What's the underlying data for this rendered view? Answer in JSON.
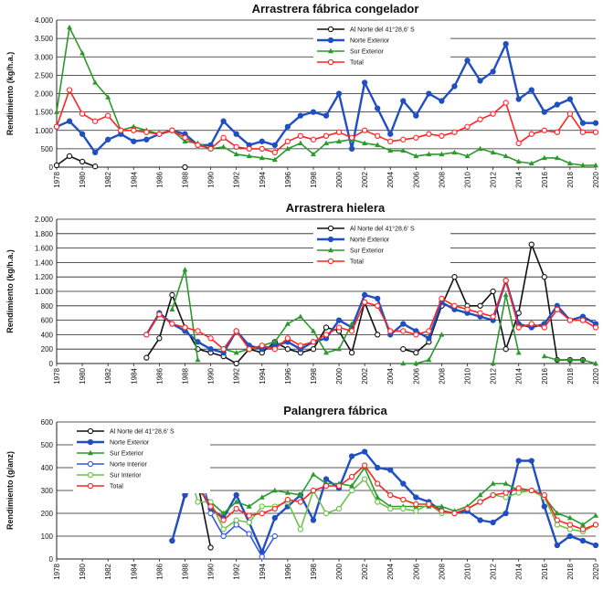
{
  "chart_data": [
    {
      "type": "line",
      "title": "Arrastrera fábrica congelador",
      "y_label": "Rendimiento (kg/h.a.)",
      "x": [
        1978,
        1979,
        1980,
        1981,
        1982,
        1983,
        1984,
        1985,
        1986,
        1987,
        1988,
        1989,
        1990,
        1991,
        1992,
        1993,
        1994,
        1995,
        1996,
        1997,
        1998,
        1999,
        2000,
        2001,
        2002,
        2003,
        2004,
        2005,
        2006,
        2007,
        2008,
        2009,
        2010,
        2011,
        2012,
        2013,
        2014,
        2015,
        2016,
        2017,
        2018,
        2019,
        2020
      ],
      "xlim": [
        1978,
        2020
      ],
      "xticks": [
        1978,
        1980,
        1982,
        1984,
        1986,
        1988,
        1990,
        1992,
        1994,
        1996,
        1998,
        2000,
        2002,
        2004,
        2006,
        2008,
        2010,
        2012,
        2014,
        2016,
        2018,
        2020
      ],
      "ylim": [
        0,
        4000
      ],
      "yticks": [
        0,
        500,
        {
          "value": 1000,
          "label": "1.000"
        },
        {
          "value": 1500,
          "label": "1.500"
        },
        {
          "value": 2000,
          "label": "2.000"
        },
        {
          "value": 2500,
          "label": "2.500"
        },
        {
          "value": 3000,
          "label": "3.000"
        },
        {
          "value": 3500,
          "label": "3.500"
        },
        {
          "value": 4000,
          "label": "4.000"
        }
      ],
      "grid": true,
      "legend": "upper center",
      "series": [
        {
          "name": "Al Norte del 41°28,6' S",
          "color": "#111111",
          "marker": "open-circle",
          "values": [
            50,
            300,
            150,
            20,
            null,
            null,
            null,
            null,
            null,
            null,
            0,
            null,
            null,
            null,
            null,
            null,
            null,
            null,
            null,
            null,
            null,
            null,
            null,
            null,
            null,
            null,
            null,
            null,
            null,
            null,
            null,
            null,
            null,
            null,
            null,
            null,
            null,
            null,
            null,
            null,
            null,
            null,
            null
          ]
        },
        {
          "name": "Norte Exterior",
          "color": "#1f4fc0",
          "marker": "circle",
          "values": [
            1100,
            1250,
            900,
            400,
            750,
            900,
            700,
            750,
            900,
            1000,
            900,
            600,
            600,
            1250,
            900,
            600,
            700,
            600,
            1100,
            1400,
            1500,
            1400,
            2000,
            500,
            2300,
            1600,
            900,
            1800,
            1400,
            2000,
            1800,
            2200,
            2900,
            2350,
            2600,
            3350,
            1850,
            2100,
            1500,
            1700,
            1850,
            1200,
            1200
          ]
        },
        {
          "name": "Sur Exterior",
          "color": "#2a9a2a",
          "marker": "triangle",
          "values": [
            1500,
            3800,
            3100,
            2300,
            1900,
            1000,
            1100,
            1000,
            900,
            1000,
            700,
            650,
            500,
            550,
            350,
            300,
            250,
            200,
            500,
            650,
            350,
            650,
            700,
            750,
            650,
            600,
            450,
            450,
            300,
            350,
            350,
            400,
            300,
            500,
            400,
            300,
            150,
            100,
            250,
            250,
            100,
            50,
            50
          ]
        },
        {
          "name": "Total",
          "color": "#ff2424",
          "marker": "open-circle",
          "values": [
            1100,
            2100,
            1450,
            1250,
            1400,
            1000,
            1000,
            950,
            900,
            1000,
            800,
            600,
            500,
            800,
            550,
            500,
            500,
            400,
            700,
            850,
            750,
            850,
            950,
            800,
            1000,
            850,
            700,
            750,
            800,
            900,
            850,
            950,
            1100,
            1300,
            1450,
            1750,
            650,
            900,
            1000,
            950,
            1450,
            950,
            950
          ]
        }
      ]
    },
    {
      "type": "line",
      "title": "Arrastrera hielera",
      "y_label": "Rendimiento (kg/h.a.)",
      "x": [
        1978,
        1979,
        1980,
        1981,
        1982,
        1983,
        1984,
        1985,
        1986,
        1987,
        1988,
        1989,
        1990,
        1991,
        1992,
        1993,
        1994,
        1995,
        1996,
        1997,
        1998,
        1999,
        2000,
        2001,
        2002,
        2003,
        2004,
        2005,
        2006,
        2007,
        2008,
        2009,
        2010,
        2011,
        2012,
        2013,
        2014,
        2015,
        2016,
        2017,
        2018,
        2019,
        2020
      ],
      "xlim": [
        1978,
        2020
      ],
      "xticks": [
        1978,
        1980,
        1982,
        1984,
        1986,
        1988,
        1990,
        1992,
        1994,
        1996,
        1998,
        2000,
        2002,
        2004,
        2006,
        2008,
        2010,
        2012,
        2014,
        2016,
        2018,
        2020
      ],
      "ylim": [
        0,
        2000
      ],
      "yticks": [
        0,
        200,
        400,
        600,
        800,
        {
          "value": 1000,
          "label": "1.000"
        },
        {
          "value": 1200,
          "label": "1.200"
        },
        {
          "value": 1400,
          "label": "1.400"
        },
        {
          "value": 1600,
          "label": "1.600"
        },
        {
          "value": 1800,
          "label": "1.800"
        },
        {
          "value": 2000,
          "label": "2.000"
        }
      ],
      "grid": true,
      "legend": "upper center",
      "series": [
        {
          "name": "Al Norte del 41°28,6' S",
          "color": "#111111",
          "marker": "open-circle",
          "values": [
            null,
            null,
            null,
            null,
            null,
            null,
            null,
            80,
            350,
            950,
            500,
            200,
            150,
            100,
            0,
            200,
            150,
            300,
            200,
            150,
            200,
            500,
            450,
            150,
            850,
            400,
            null,
            200,
            150,
            300,
            800,
            1200,
            800,
            800,
            1000,
            200,
            700,
            1650,
            1200,
            50,
            50,
            50,
            null
          ]
        },
        {
          "name": "Norte Exterior",
          "color": "#1f4fc0",
          "marker": "circle",
          "values": [
            null,
            null,
            null,
            null,
            null,
            null,
            null,
            400,
            700,
            550,
            450,
            300,
            200,
            150,
            450,
            250,
            200,
            250,
            300,
            200,
            300,
            350,
            600,
            500,
            950,
            900,
            400,
            550,
            450,
            350,
            850,
            750,
            700,
            650,
            600,
            1150,
            550,
            500,
            550,
            800,
            600,
            650,
            550
          ]
        },
        {
          "name": "Sur Exterior",
          "color": "#2a9a2a",
          "marker": "triangle",
          "values": [
            null,
            null,
            null,
            null,
            null,
            null,
            null,
            null,
            null,
            750,
            1300,
            50,
            null,
            200,
            150,
            200,
            250,
            300,
            550,
            650,
            450,
            150,
            200,
            550,
            null,
            null,
            null,
            0,
            0,
            50,
            400,
            null,
            null,
            null,
            0,
            950,
            150,
            null,
            100,
            50,
            50,
            50,
            0
          ]
        },
        {
          "name": "Total",
          "color": "#ff2424",
          "marker": "open-circle",
          "values": [
            null,
            null,
            null,
            null,
            null,
            null,
            null,
            400,
            680,
            550,
            500,
            450,
            350,
            200,
            450,
            200,
            250,
            200,
            350,
            250,
            300,
            400,
            500,
            450,
            850,
            800,
            450,
            450,
            400,
            450,
            900,
            800,
            750,
            700,
            650,
            1150,
            500,
            550,
            500,
            750,
            600,
            600,
            500
          ]
        }
      ]
    },
    {
      "type": "line",
      "title": "Palangrera fábrica",
      "y_label": "Rendimiento (g/anz)",
      "x": [
        1978,
        1979,
        1980,
        1981,
        1982,
        1983,
        1984,
        1985,
        1986,
        1987,
        1988,
        1989,
        1990,
        1991,
        1992,
        1993,
        1994,
        1995,
        1996,
        1997,
        1998,
        1999,
        2000,
        2001,
        2002,
        2003,
        2004,
        2005,
        2006,
        2007,
        2008,
        2009,
        2010,
        2011,
        2012,
        2013,
        2014,
        2015,
        2016,
        2017,
        2018,
        2019,
        2020
      ],
      "xlim": [
        1978,
        2020
      ],
      "xticks": [
        1978,
        1980,
        1982,
        1984,
        1986,
        1988,
        1990,
        1992,
        1994,
        1996,
        1998,
        2000,
        2002,
        2004,
        2006,
        2008,
        2010,
        2012,
        2014,
        2016,
        2018,
        2020
      ],
      "ylim": [
        0,
        600
      ],
      "yticks": [
        0,
        100,
        200,
        300,
        400,
        500,
        600
      ],
      "grid": true,
      "legend": "upper left",
      "series": [
        {
          "name": "Al Norte del 41°28,6' S",
          "color": "#111111",
          "marker": "open-circle",
          "values": [
            null,
            null,
            null,
            null,
            null,
            null,
            null,
            null,
            null,
            80,
            290,
            330,
            50,
            null,
            null,
            null,
            null,
            null,
            null,
            null,
            null,
            null,
            null,
            null,
            null,
            null,
            null,
            null,
            null,
            null,
            null,
            null,
            null,
            null,
            null,
            null,
            null,
            null,
            null,
            null,
            null,
            null,
            null
          ]
        },
        {
          "name": "Norte Exterior",
          "color": "#1f4fc0",
          "marker": "circle",
          "values": [
            null,
            null,
            null,
            null,
            null,
            null,
            null,
            null,
            null,
            80,
            280,
            330,
            220,
            180,
            280,
            160,
            30,
            180,
            230,
            280,
            170,
            350,
            310,
            450,
            470,
            400,
            390,
            330,
            270,
            250,
            210,
            200,
            210,
            170,
            160,
            200,
            430,
            430,
            230,
            60,
            100,
            80,
            60
          ]
        },
        {
          "name": "Sur Exterior",
          "color": "#2a9a2a",
          "marker": "triangle",
          "values": [
            null,
            null,
            null,
            null,
            null,
            null,
            null,
            null,
            null,
            420,
            370,
            300,
            250,
            200,
            250,
            230,
            270,
            300,
            290,
            280,
            370,
            330,
            330,
            320,
            400,
            270,
            230,
            230,
            230,
            230,
            230,
            210,
            230,
            280,
            330,
            330,
            300,
            300,
            270,
            200,
            180,
            150,
            190
          ]
        },
        {
          "name": "Norte Interior",
          "color": "#3358e0",
          "marker": "open-circle",
          "values": [
            null,
            null,
            null,
            null,
            null,
            null,
            null,
            null,
            null,
            550,
            520,
            430,
            200,
            100,
            150,
            110,
            10,
            100,
            null,
            null,
            null,
            null,
            null,
            null,
            null,
            null,
            null,
            null,
            null,
            null,
            null,
            null,
            null,
            null,
            null,
            null,
            null,
            null,
            null,
            null,
            null,
            null,
            null
          ]
        },
        {
          "name": "Sur Interior",
          "color": "#6cc24a",
          "marker": "open-circle",
          "values": [
            null,
            null,
            null,
            null,
            null,
            null,
            null,
            null,
            null,
            400,
            450,
            250,
            250,
            130,
            170,
            160,
            230,
            230,
            250,
            130,
            300,
            200,
            220,
            300,
            350,
            250,
            220,
            220,
            210,
            240,
            200,
            200,
            220,
            250,
            280,
            270,
            290,
            300,
            270,
            150,
            130,
            120,
            150
          ]
        },
        {
          "name": "Total",
          "color": "#ff2424",
          "marker": "open-circle",
          "values": [
            null,
            null,
            null,
            null,
            null,
            null,
            null,
            null,
            null,
            480,
            420,
            320,
            230,
            170,
            220,
            190,
            200,
            220,
            260,
            250,
            300,
            320,
            320,
            360,
            410,
            330,
            280,
            260,
            240,
            240,
            210,
            200,
            220,
            250,
            280,
            290,
            310,
            300,
            280,
            170,
            150,
            130,
            150
          ]
        }
      ]
    }
  ]
}
